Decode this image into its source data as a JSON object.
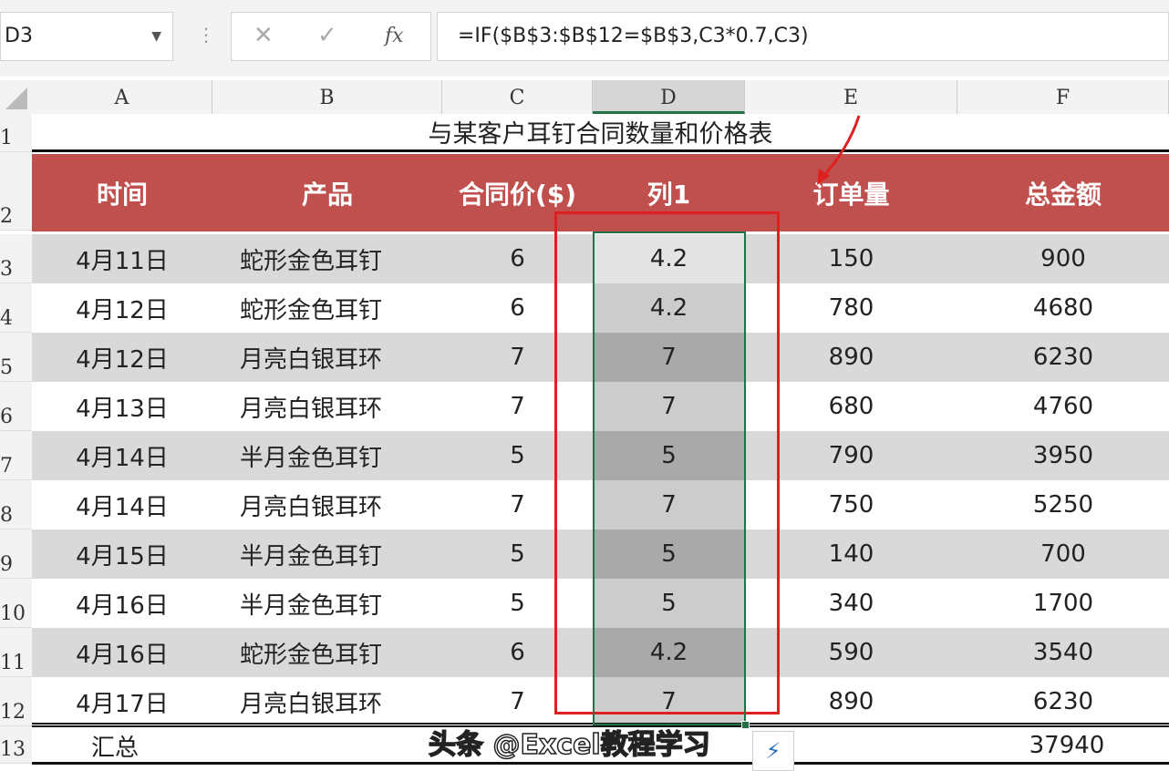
{
  "name_box": "D3",
  "formula": "=IF($B$3:$B$12=$B$3,C3*0.7,C3)",
  "icons": {
    "cancel": "✕",
    "enter": "✓",
    "fx": "fx"
  },
  "columns": [
    "A",
    "B",
    "C",
    "D",
    "E",
    "F"
  ],
  "rows": [
    "1",
    "2",
    "3",
    "4",
    "5",
    "6",
    "7",
    "8",
    "9",
    "10",
    "11",
    "12",
    "13"
  ],
  "title": "与某客户耳钉合同数量和价格表",
  "headers": [
    "时间",
    "产品",
    "合同价($)",
    "列1",
    "订单量",
    "总金额"
  ],
  "data": [
    [
      "4月11日",
      "蛇形金色耳钉",
      "6",
      "4.2",
      "150",
      "900"
    ],
    [
      "4月12日",
      "蛇形金色耳钉",
      "6",
      "4.2",
      "780",
      "4680"
    ],
    [
      "4月12日",
      "月亮白银耳环",
      "7",
      "7",
      "890",
      "6230"
    ],
    [
      "4月13日",
      "月亮白银耳环",
      "7",
      "7",
      "680",
      "4760"
    ],
    [
      "4月14日",
      "半月金色耳钉",
      "5",
      "5",
      "790",
      "3950"
    ],
    [
      "4月14日",
      "月亮白银耳环",
      "7",
      "7",
      "750",
      "5250"
    ],
    [
      "4月15日",
      "半月金色耳钉",
      "5",
      "5",
      "140",
      "700"
    ],
    [
      "4月16日",
      "半月金色耳钉",
      "5",
      "5",
      "340",
      "1700"
    ],
    [
      "4月16日",
      "蛇形金色耳钉",
      "6",
      "4.2",
      "590",
      "3540"
    ],
    [
      "4月17日",
      "月亮白银耳环",
      "7",
      "7",
      "890",
      "6230"
    ]
  ],
  "total_label": "汇总",
  "total_value": "37940",
  "watermark": "头条 @Excel教程学习",
  "colors": {
    "header": "#c0504d",
    "stripe": "#d9d9d9",
    "selection": "#217346",
    "highlight": "#e02020"
  }
}
